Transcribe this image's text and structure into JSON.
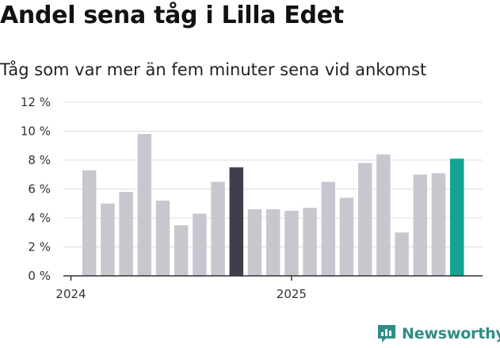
{
  "title": "Andel sena tåg i Lilla Edet",
  "subtitle": "Tåg som var mer än fem minuter sena vid ankomst",
  "brand": {
    "name": "Newsworthy",
    "icon": "newsworthy-chart-icon",
    "color": "#2e8d86"
  },
  "colors": {
    "bar": "#c8c7d0",
    "highlight_2024": "#3f3e4b",
    "latest": "#12a594",
    "grid": "#dddddd",
    "axis": "#333333"
  },
  "chart_data": {
    "type": "bar",
    "title": "Andel sena tåg i Lilla Edet",
    "subtitle": "Tåg som var mer än fem minuter sena vid ankomst",
    "xlabel": "",
    "ylabel": "",
    "ylim": [
      0,
      12
    ],
    "yticks": [
      0,
      2,
      4,
      6,
      8,
      10,
      12
    ],
    "ytick_labels": [
      "0 %",
      "2 %",
      "4 %",
      "6 %",
      "8 %",
      "10 %",
      "12 %"
    ],
    "xtick_labels": [
      {
        "label": "2024",
        "index": 0
      },
      {
        "label": "2025",
        "index": 12
      }
    ],
    "grid": true,
    "categories": [
      "2024-01",
      "2024-02",
      "2024-03",
      "2024-04",
      "2024-05",
      "2024-06",
      "2024-07",
      "2024-08",
      "2024-09",
      "2024-10",
      "2024-11",
      "2024-12",
      "2025-01",
      "2025-02",
      "2025-03",
      "2025-04",
      "2025-05",
      "2025-06",
      "2025-07",
      "2025-08",
      "2025-09",
      "2025-10",
      "2025-11",
      "2025-12"
    ],
    "values": [
      null,
      7.3,
      5.0,
      5.8,
      9.8,
      5.2,
      3.5,
      4.3,
      6.5,
      7.5,
      4.6,
      4.6,
      4.5,
      4.7,
      6.5,
      5.4,
      7.8,
      8.4,
      3.0,
      7.0,
      7.1,
      8.1,
      null,
      null
    ],
    "bar_colors": [
      "",
      "bar",
      "bar",
      "bar",
      "bar",
      "bar",
      "bar",
      "bar",
      "bar",
      "highlight_2024",
      "bar",
      "bar",
      "bar",
      "bar",
      "bar",
      "bar",
      "bar",
      "bar",
      "bar",
      "bar",
      "bar",
      "latest",
      "",
      ""
    ]
  }
}
